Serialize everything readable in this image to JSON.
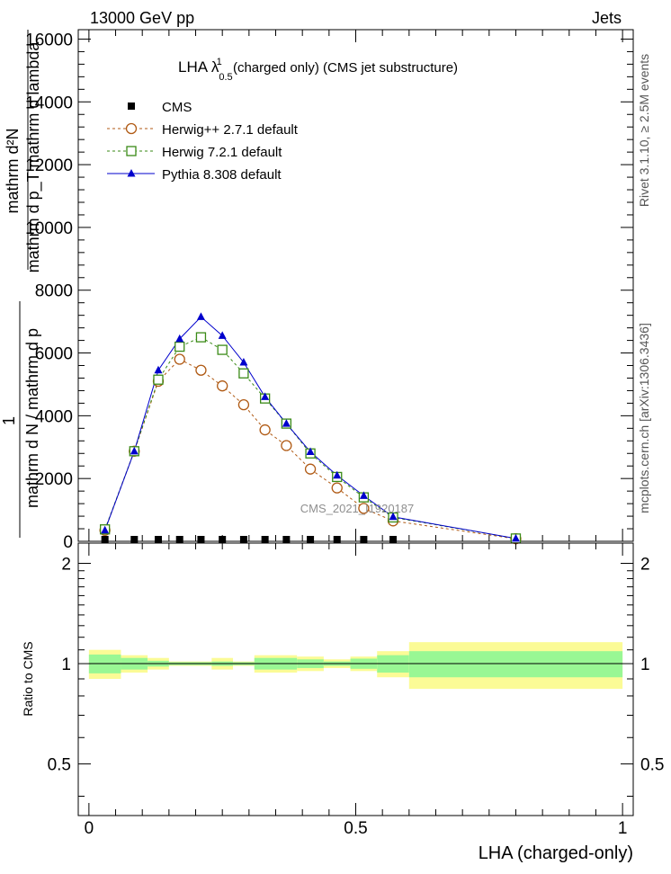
{
  "header": {
    "left": "13000 GeV pp",
    "right": "Jets"
  },
  "side": {
    "rivet": "Rivet 3.1.10, ≥ 2.5M events",
    "mcplots": "mcplots.cern.ch [arXiv:1306.3436]"
  },
  "chart_data": {
    "type": "line",
    "title": {
      "prefix": "LHA λ",
      "sup": "1",
      "sub": "0.5",
      "suffix": " (charged only) (CMS jet substructure)"
    },
    "watermark": "CMS_2021_I1920187",
    "ylabel_top": "1",
    "ylabel_numerator": "mathrm d²N",
    "ylabel_denominator": "mathrm d p_T mathrm d lambda",
    "ylabel_lines": [
      "mathrm d N / mathrm d p",
      "T",
      "mathrm d p",
      "T",
      "mathrm d lambda",
      "mathrm d²N"
    ],
    "xlabel": "LHA (charged-only)",
    "xlim": [
      -0.02,
      1.02
    ],
    "ylim": [
      0,
      16300
    ],
    "yticks": [
      0,
      2000,
      4000,
      6000,
      8000,
      10000,
      12000,
      14000,
      16000
    ],
    "ytick_labels": [
      "0",
      "2000",
      "4000",
      "6000",
      "8000",
      "10000",
      "12000",
      "14000",
      "16000"
    ],
    "xticks": [
      0,
      0.5,
      1
    ],
    "xtick_labels": [
      "0",
      "0.5",
      "1"
    ],
    "legend_position": "top-left",
    "series": [
      {
        "name": "CMS",
        "marker": "square-filled",
        "color": "#000000",
        "x": [
          0.03,
          0.085,
          0.13,
          0.17,
          0.21,
          0.25,
          0.29,
          0.33,
          0.37,
          0.415,
          0.465,
          0.515,
          0.57
        ],
        "y": [
          0,
          0,
          0,
          0,
          0,
          0,
          0,
          0,
          0,
          0,
          0,
          0,
          0
        ]
      },
      {
        "name": "Herwig++ 2.7.1 default",
        "marker": "circle-open",
        "color": "#b05a14",
        "dash": "3,3",
        "x": [
          0.03,
          0.085,
          0.13,
          0.17,
          0.21,
          0.25,
          0.29,
          0.33,
          0.37,
          0.415,
          0.465,
          0.515,
          0.57,
          0.8
        ],
        "y": [
          350,
          2870,
          5100,
          5800,
          5450,
          4950,
          4350,
          3550,
          3050,
          2300,
          1700,
          1050,
          650,
          80
        ]
      },
      {
        "name": "Herwig 7.2.1 default",
        "marker": "square-open",
        "color": "#3a8a16",
        "dash": "3,3",
        "x": [
          0.03,
          0.085,
          0.13,
          0.17,
          0.21,
          0.25,
          0.29,
          0.33,
          0.37,
          0.415,
          0.465,
          0.515,
          0.57,
          0.8
        ],
        "y": [
          380,
          2870,
          5150,
          6200,
          6500,
          6100,
          5350,
          4550,
          3750,
          2800,
          2050,
          1400,
          760,
          90
        ]
      },
      {
        "name": "Pythia 8.308 default",
        "marker": "triangle-filled",
        "color": "#0000cc",
        "dash": "",
        "x": [
          0.03,
          0.085,
          0.13,
          0.17,
          0.21,
          0.25,
          0.29,
          0.33,
          0.37,
          0.415,
          0.465,
          0.515,
          0.57,
          0.8
        ],
        "y": [
          350,
          2870,
          5450,
          6450,
          7150,
          6550,
          5700,
          4600,
          3750,
          2850,
          2100,
          1450,
          780,
          90
        ]
      }
    ],
    "ratio": {
      "ylabel": "Ratio to CMS",
      "ylim": [
        0.35,
        2.3
      ],
      "yticks": [
        0.5,
        1,
        2
      ],
      "ytick_labels": [
        "0.5",
        "1",
        "2"
      ],
      "bins": [
        {
          "x0": 0.0,
          "x1": 0.06,
          "inner": 0.065,
          "outer": 0.1
        },
        {
          "x0": 0.06,
          "x1": 0.11,
          "inner": 0.04,
          "outer": 0.06
        },
        {
          "x0": 0.11,
          "x1": 0.15,
          "inner": 0.02,
          "outer": 0.04
        },
        {
          "x0": 0.15,
          "x1": 0.23,
          "inner": 0.01,
          "outer": 0.015
        },
        {
          "x0": 0.23,
          "x1": 0.27,
          "inner": 0.015,
          "outer": 0.04
        },
        {
          "x0": 0.27,
          "x1": 0.31,
          "inner": 0.01,
          "outer": 0.015
        },
        {
          "x0": 0.31,
          "x1": 0.39,
          "inner": 0.04,
          "outer": 0.06
        },
        {
          "x0": 0.39,
          "x1": 0.44,
          "inner": 0.03,
          "outer": 0.05
        },
        {
          "x0": 0.44,
          "x1": 0.49,
          "inner": 0.015,
          "outer": 0.03
        },
        {
          "x0": 0.49,
          "x1": 0.54,
          "inner": 0.035,
          "outer": 0.05
        },
        {
          "x0": 0.54,
          "x1": 0.6,
          "inner": 0.06,
          "outer": 0.09
        },
        {
          "x0": 0.6,
          "x1": 1.0,
          "inner": 0.09,
          "outer": 0.16
        }
      ]
    },
    "colors": {
      "band_inner": "#99f794",
      "band_outer": "#fbfb96"
    }
  }
}
